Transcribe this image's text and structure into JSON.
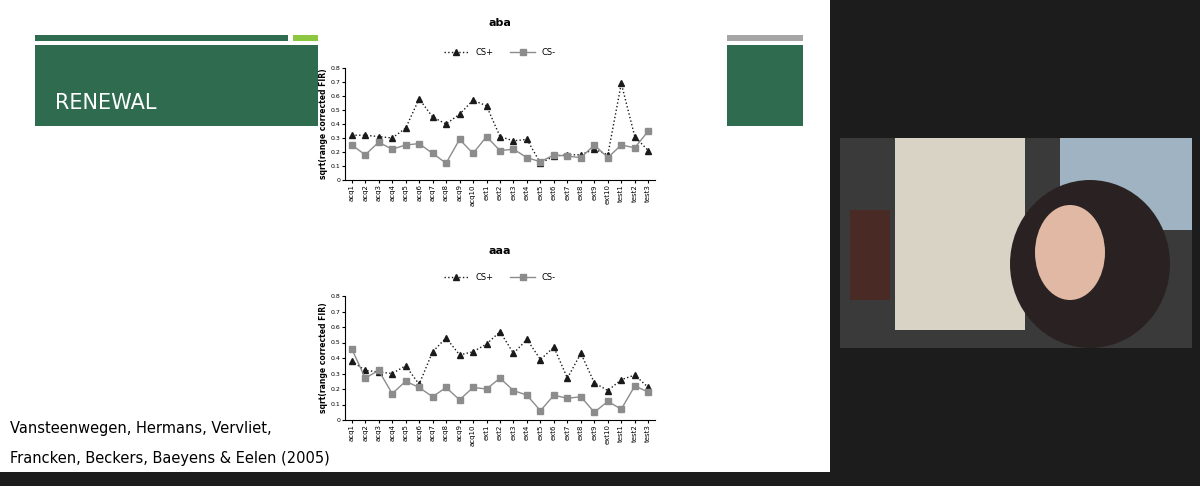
{
  "slide": {
    "title": "RENEWAL",
    "citation": [
      "Vansteenwegen, Hermans, Vervliet,",
      "Francken, Beckers, Baeyens & Eelen (2005)"
    ]
  },
  "chart_data": [
    {
      "type": "line",
      "title": "aba",
      "y_label": "sqrt(range corrected FIR)",
      "categories": [
        "acq1",
        "acq2",
        "acq3",
        "acq4",
        "acq5",
        "acq6",
        "acq7",
        "acq8",
        "acq9",
        "acq10",
        "ext1",
        "ext2",
        "ext3",
        "ext4",
        "ext5",
        "ext6",
        "ext7",
        "ext8",
        "ext9",
        "ext10",
        "test1",
        "test2",
        "test3"
      ],
      "series": [
        {
          "name": "CS+",
          "color": "#1a1a1a",
          "marker": "triangle",
          "line_style": "dotted",
          "values": [
            0.32,
            0.32,
            0.31,
            0.3,
            0.37,
            0.58,
            0.45,
            0.4,
            0.47,
            0.57,
            0.53,
            0.31,
            0.28,
            0.29,
            0.12,
            0.17,
            0.18,
            0.18,
            0.22,
            0.18,
            0.69,
            0.31,
            0.21
          ]
        },
        {
          "name": "CS-",
          "color": "#8c8c8c",
          "marker": "square",
          "line_style": "solid",
          "values": [
            0.25,
            0.18,
            0.27,
            0.22,
            0.25,
            0.26,
            0.19,
            0.12,
            0.29,
            0.19,
            0.31,
            0.21,
            0.22,
            0.16,
            0.13,
            0.18,
            0.17,
            0.16,
            0.25,
            0.16,
            0.25,
            0.23,
            0.35
          ]
        }
      ],
      "ylim": [
        0,
        0.8
      ],
      "yticks": [
        0,
        0.1,
        0.2,
        0.3,
        0.4,
        0.5,
        0.6,
        0.7,
        0.8
      ],
      "legend": "upper center"
    },
    {
      "type": "line",
      "title": "aaa",
      "y_label": "sqrt(range corrected FIR)",
      "categories": [
        "acq1",
        "acq2",
        "acq3",
        "acq4",
        "acq5",
        "acq6",
        "acq7",
        "acq8",
        "acq9",
        "acq10",
        "ext1",
        "ext2",
        "ext3",
        "ext4",
        "ext5",
        "ext6",
        "ext7",
        "ext8",
        "ext9",
        "ext10",
        "test1",
        "test2",
        "test3"
      ],
      "series": [
        {
          "name": "CS+",
          "color": "#1a1a1a",
          "marker": "triangle",
          "line_style": "dotted",
          "values": [
            0.38,
            0.32,
            0.31,
            0.3,
            0.35,
            0.23,
            0.44,
            0.53,
            0.42,
            0.44,
            0.49,
            0.57,
            0.43,
            0.52,
            0.39,
            0.47,
            0.27,
            0.43,
            0.24,
            0.19,
            0.26,
            0.29,
            0.21
          ]
        },
        {
          "name": "CS-",
          "color": "#8c8c8c",
          "marker": "square",
          "line_style": "solid",
          "values": [
            0.46,
            0.27,
            0.32,
            0.17,
            0.25,
            0.21,
            0.15,
            0.21,
            0.13,
            0.21,
            0.2,
            0.27,
            0.19,
            0.16,
            0.06,
            0.16,
            0.14,
            0.15,
            0.05,
            0.12,
            0.07,
            0.22,
            0.18
          ]
        }
      ],
      "ylim": [
        0,
        0.8
      ],
      "yticks": [
        0,
        0.1,
        0.2,
        0.3,
        0.4,
        0.5,
        0.6,
        0.7,
        0.8
      ],
      "legend": "upper center"
    }
  ]
}
